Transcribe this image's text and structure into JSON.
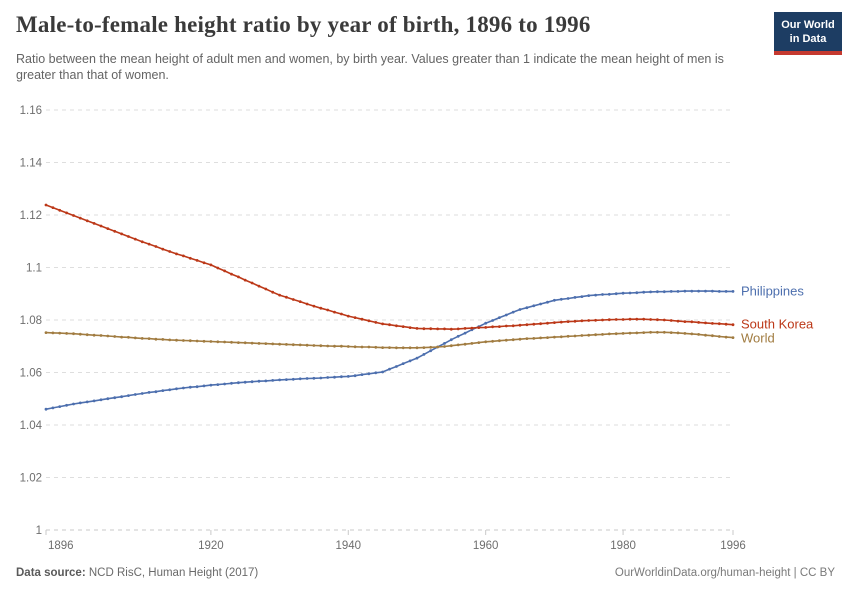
{
  "header": {
    "title": "Male-to-female height ratio by year of birth, 1896 to 1996",
    "subtitle": "Ratio between the mean height of adult men and women, by birth year. Values greater than 1 indicate the mean height of men is greater than that of women.",
    "logo_line1": "Our World",
    "logo_line2": "in Data"
  },
  "footer": {
    "source_label": "Data source:",
    "source_value": " NCD RisC, Human Height (2017)",
    "rights": "OurWorldinData.org/human-height | CC BY"
  },
  "colors": {
    "logo_bg": "#1D3D63",
    "logo_bar": "#C5392F",
    "gridline": "#dedede",
    "axis": "#c9c9c9",
    "tick_text": "#6e6e6e"
  },
  "chart_data": {
    "type": "line",
    "title": "Male-to-female height ratio by year of birth, 1896 to 1996",
    "xlabel": "",
    "ylabel": "",
    "xlim": [
      1896,
      1996
    ],
    "ylim": [
      1,
      1.16
    ],
    "xticks": [
      1896,
      1920,
      1940,
      1960,
      1980,
      1996
    ],
    "yticks": [
      1,
      1.02,
      1.04,
      1.06,
      1.08,
      1.1,
      1.12,
      1.14,
      1.16
    ],
    "grid": "horizontal-dashed",
    "legend_position": "line-end-labels",
    "markers": "yearly-dots",
    "x": [
      1896,
      1897,
      1898,
      1899,
      1900,
      1901,
      1902,
      1903,
      1904,
      1905,
      1906,
      1907,
      1908,
      1909,
      1910,
      1911,
      1912,
      1913,
      1914,
      1915,
      1916,
      1917,
      1918,
      1919,
      1920,
      1921,
      1922,
      1923,
      1924,
      1925,
      1926,
      1927,
      1928,
      1929,
      1930,
      1931,
      1932,
      1933,
      1934,
      1935,
      1936,
      1937,
      1938,
      1939,
      1940,
      1941,
      1942,
      1943,
      1944,
      1945,
      1946,
      1947,
      1948,
      1949,
      1950,
      1951,
      1952,
      1953,
      1954,
      1955,
      1956,
      1957,
      1958,
      1959,
      1960,
      1961,
      1962,
      1963,
      1964,
      1965,
      1966,
      1967,
      1968,
      1969,
      1970,
      1971,
      1972,
      1973,
      1974,
      1975,
      1976,
      1977,
      1978,
      1979,
      1980,
      1981,
      1982,
      1983,
      1984,
      1985,
      1986,
      1987,
      1988,
      1989,
      1990,
      1991,
      1992,
      1993,
      1994,
      1995,
      1996
    ],
    "series": [
      {
        "name": "Philippines",
        "color": "#4D6FAE",
        "values": [
          1.046,
          1.0465,
          1.047,
          1.0475,
          1.048,
          1.0484,
          1.0488,
          1.0492,
          1.0496,
          1.05,
          1.0504,
          1.0508,
          1.0512,
          1.0516,
          1.052,
          1.0524,
          1.0527,
          1.0531,
          1.0534,
          1.0538,
          1.0541,
          1.0544,
          1.0546,
          1.0549,
          1.0552,
          1.0554,
          1.0556,
          1.0559,
          1.0561,
          1.0563,
          1.0565,
          1.0567,
          1.0568,
          1.057,
          1.0572,
          1.0573,
          1.0574,
          1.0576,
          1.0577,
          1.0578,
          1.0579,
          1.0581,
          1.0582,
          1.0584,
          1.0585,
          1.0588,
          1.0592,
          1.0595,
          1.0599,
          1.0602,
          1.0613,
          1.0623,
          1.0634,
          1.0644,
          1.0655,
          1.0669,
          1.0683,
          1.0697,
          1.0711,
          1.0725,
          1.0738,
          1.075,
          1.0763,
          1.0775,
          1.0788,
          1.0798,
          1.0809,
          1.0819,
          1.083,
          1.084,
          1.0847,
          1.0854,
          1.0861,
          1.0868,
          1.0875,
          1.0879,
          1.0882,
          1.0886,
          1.0889,
          1.0893,
          1.0895,
          1.0897,
          1.0898,
          1.09,
          1.0902,
          1.0903,
          1.0904,
          1.0906,
          1.0907,
          1.0908,
          1.0908,
          1.0909,
          1.0909,
          1.091,
          1.091,
          1.091,
          1.091,
          1.091,
          1.0909,
          1.0909,
          1.0909
        ]
      },
      {
        "name": "South Korea",
        "color": "#BC3818",
        "values": [
          1.1238,
          1.1228,
          1.1218,
          1.1208,
          1.1198,
          1.1188,
          1.1178,
          1.1168,
          1.1158,
          1.1148,
          1.1138,
          1.1128,
          1.1118,
          1.1108,
          1.1098,
          1.1089,
          1.108,
          1.107,
          1.1061,
          1.1052,
          1.1044,
          1.1035,
          1.1027,
          1.1018,
          1.101,
          1.0998,
          1.0987,
          1.0975,
          1.0964,
          1.0952,
          1.0941,
          1.0929,
          1.0918,
          1.0906,
          1.0895,
          1.0887,
          1.0878,
          1.087,
          1.0861,
          1.0853,
          1.0845,
          1.0838,
          1.083,
          1.0823,
          1.0815,
          1.0809,
          1.0803,
          1.0797,
          1.0791,
          1.0785,
          1.0782,
          1.0778,
          1.0775,
          1.0771,
          1.0768,
          1.0767,
          1.0767,
          1.0766,
          1.0766,
          1.0765,
          1.0766,
          1.0768,
          1.0769,
          1.0771,
          1.0772,
          1.0774,
          1.0775,
          1.0777,
          1.0778,
          1.078,
          1.0782,
          1.0784,
          1.0786,
          1.0788,
          1.079,
          1.0792,
          1.0794,
          1.0795,
          1.0797,
          1.0798,
          1.0799,
          1.08,
          1.0801,
          1.0802,
          1.0802,
          1.0803,
          1.0803,
          1.0803,
          1.0802,
          1.0801,
          1.08,
          1.0798,
          1.0796,
          1.0794,
          1.0793,
          1.0791,
          1.0789,
          1.0787,
          1.0786,
          1.0784,
          1.0782
        ]
      },
      {
        "name": "World",
        "color": "#A17C41",
        "values": [
          1.0752,
          1.0751,
          1.075,
          1.0749,
          1.0748,
          1.0746,
          1.0744,
          1.0742,
          1.0741,
          1.0739,
          1.0737,
          1.0735,
          1.0734,
          1.0732,
          1.073,
          1.0729,
          1.0727,
          1.0726,
          1.0724,
          1.0723,
          1.0722,
          1.0721,
          1.072,
          1.0719,
          1.0718,
          1.0717,
          1.0716,
          1.0715,
          1.0714,
          1.0713,
          1.0712,
          1.0711,
          1.071,
          1.0709,
          1.0708,
          1.0707,
          1.0706,
          1.0705,
          1.0704,
          1.0703,
          1.0702,
          1.0701,
          1.07,
          1.07,
          1.0699,
          1.0698,
          1.0697,
          1.0697,
          1.0696,
          1.0695,
          1.0695,
          1.0694,
          1.0694,
          1.0694,
          1.0694,
          1.0695,
          1.0696,
          1.0697,
          1.0699,
          1.0702,
          1.0705,
          1.0708,
          1.0711,
          1.0714,
          1.0717,
          1.0719,
          1.0721,
          1.0723,
          1.0725,
          1.0727,
          1.0729,
          1.073,
          1.0732,
          1.0733,
          1.0735,
          1.0736,
          1.0738,
          1.0739,
          1.0741,
          1.0742,
          1.0744,
          1.0745,
          1.0747,
          1.0748,
          1.0749,
          1.075,
          1.0751,
          1.0752,
          1.0753,
          1.0753,
          1.0753,
          1.0752,
          1.0751,
          1.0749,
          1.0747,
          1.0745,
          1.0742,
          1.074,
          1.0737,
          1.0735,
          1.0733
        ]
      }
    ]
  }
}
